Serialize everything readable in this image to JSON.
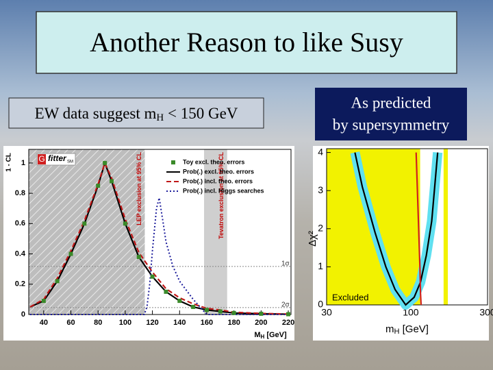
{
  "title": "Another Reason to like Susy",
  "left_caption": {
    "text": "EW data suggest m",
    "sub": "H",
    "rest": " < 150 GeV"
  },
  "right_caption": [
    "As predicted",
    "by supersymmetry"
  ],
  "chart_data": [
    {
      "type": "line",
      "logo": [
        "G",
        "fitter",
        "SM"
      ],
      "y_label": "1 - CL",
      "x_label": {
        "text": "M",
        "sub": "H",
        "rest": " [GeV]"
      },
      "xlim": [
        29,
        222
      ],
      "ylim": [
        0,
        1.09
      ],
      "xticks": [
        40,
        60,
        80,
        100,
        120,
        140,
        160,
        180,
        200,
        220
      ],
      "yticks": [
        0,
        0.2,
        0.4,
        0.6,
        0.8,
        1
      ],
      "regions": [
        {
          "x": [
            29,
            114.4
          ],
          "label": "LEP exclusion at 95% CL",
          "color": "#c4c4c4",
          "hatch": true,
          "label_color": "#c00000"
        },
        {
          "x": [
            158,
            175
          ],
          "label": "Tevatron exclusion at 95% CL",
          "color": "#cfcfcf",
          "hatch": false,
          "label_color": "#c00000"
        }
      ],
      "hlines": [
        {
          "value": 0.317,
          "label": "1σ"
        },
        {
          "value": 0.046,
          "label": "2σ"
        }
      ],
      "series": [
        {
          "name": "Toy excl. theo. errors",
          "color": "#3a8a2a",
          "style": "markers",
          "x": [
            40,
            50,
            60,
            70,
            80,
            85,
            90,
            100,
            110,
            120,
            130,
            140,
            150,
            160,
            170,
            180,
            200,
            220
          ],
          "values": [
            0.09,
            0.22,
            0.4,
            0.6,
            0.85,
            1.0,
            0.88,
            0.6,
            0.38,
            0.25,
            0.15,
            0.09,
            0.05,
            0.03,
            0.02,
            0.01,
            0.005,
            0.002
          ]
        },
        {
          "name": "Prob(.) excl. theo. errors",
          "color": "#000000",
          "style": "solid",
          "x": [
            30,
            40,
            50,
            60,
            70,
            80,
            85,
            90,
            100,
            110,
            120,
            130,
            140,
            150,
            160,
            170,
            180,
            200,
            220
          ],
          "values": [
            0.05,
            0.09,
            0.22,
            0.4,
            0.6,
            0.85,
            1.0,
            0.88,
            0.6,
            0.38,
            0.25,
            0.15,
            0.09,
            0.05,
            0.03,
            0.02,
            0.01,
            0.005,
            0.002
          ]
        },
        {
          "name": "Prob(.) incl. theo. errors",
          "color": "#c01818",
          "style": "dashed",
          "x": [
            30,
            40,
            50,
            60,
            70,
            80,
            85,
            90,
            100,
            110,
            120,
            130,
            140,
            150,
            160,
            170,
            180,
            200,
            220
          ],
          "values": [
            0.05,
            0.1,
            0.24,
            0.42,
            0.62,
            0.86,
            1.0,
            0.9,
            0.63,
            0.41,
            0.28,
            0.17,
            0.11,
            0.07,
            0.04,
            0.03,
            0.015,
            0.007,
            0.003
          ]
        },
        {
          "name": "Prob(.) incl. Higgs searches",
          "color": "#1a1a9a",
          "style": "dotted",
          "x": [
            30,
            114,
            116,
            118,
            120,
            123,
            125,
            128,
            130,
            135,
            140,
            145,
            150,
            155,
            158,
            160,
            220
          ],
          "values": [
            0,
            0,
            0.05,
            0.2,
            0.42,
            0.7,
            0.77,
            0.6,
            0.48,
            0.32,
            0.22,
            0.16,
            0.1,
            0.05,
            0.02,
            0,
            0
          ]
        }
      ]
    },
    {
      "type": "line",
      "log_x": true,
      "y_label": "Δχ²",
      "x_label": {
        "text": "m",
        "sub": "H",
        "rest": " [GeV]"
      },
      "xlim": [
        30,
        300
      ],
      "ylim": [
        0,
        4.1
      ],
      "xticks": [
        30,
        100,
        300
      ],
      "yticks": [
        0,
        1,
        2,
        3,
        4
      ],
      "band_color": "#60e0f0",
      "regions": [
        {
          "x": [
            30,
            114.4
          ],
          "label": "Excluded",
          "color": "#f2f200",
          "hatch": false,
          "label_color": "#000000"
        },
        {
          "x": [
            160,
            170
          ],
          "color": "#f2f200",
          "hatch": false
        }
      ],
      "series": [
        {
          "color": "#000000",
          "style": "solid",
          "band": true,
          "x": [
            45,
            50,
            60,
            70,
            80,
            93,
            105,
            115,
            125,
            135,
            147
          ],
          "values": [
            4,
            3.1,
            1.9,
            1.0,
            0.4,
            0,
            0.2,
            0.6,
            1.3,
            2.2,
            4
          ]
        },
        {
          "color": "#d02020",
          "style": "solid",
          "band": false,
          "x": [
            108,
            110,
            112,
            114,
            115,
            116
          ],
          "values": [
            4,
            3,
            2,
            1,
            0.3,
            0
          ]
        }
      ]
    }
  ]
}
